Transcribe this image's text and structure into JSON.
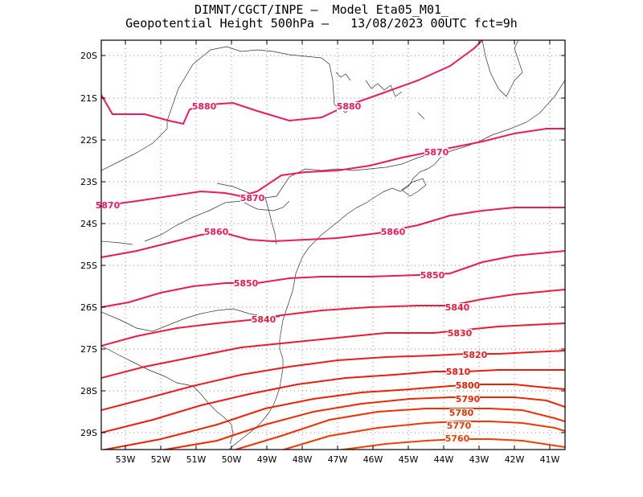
{
  "title": {
    "line1": "DIMNT/CGCT/INPE –  Model Eta05_M01_",
    "line2": "Geopotential Height 500hPa –   13/08/2023 00UTC fct=9h"
  },
  "map": {
    "lat_labels": [
      "20S",
      "21S",
      "22S",
      "23S",
      "24S",
      "25S",
      "26S",
      "27S",
      "28S",
      "29S"
    ],
    "lon_labels": [
      "53W",
      "52W",
      "51W",
      "50W",
      "49W",
      "48W",
      "47W",
      "46W",
      "45W",
      "44W",
      "43W",
      "42W",
      "41W"
    ]
  },
  "contours": [
    {
      "value": "5880",
      "color": "#ee1a5a",
      "label_text": [
        "5880",
        "5880"
      ]
    },
    {
      "value": "5870",
      "color": "#ee1a5a",
      "label_text": [
        "5870",
        "5870",
        "5870"
      ]
    },
    {
      "value": "5860",
      "color": "#ee1a55",
      "label_text": [
        "5860",
        "5860"
      ]
    },
    {
      "value": "5850",
      "color": "#ee1a50",
      "label_text": [
        "5850",
        "5850"
      ]
    },
    {
      "value": "5840",
      "color": "#ee1a40",
      "label_text": [
        "5840",
        "5840"
      ]
    },
    {
      "value": "5830",
      "color": "#ee1a30",
      "label_text": [
        "5830"
      ]
    },
    {
      "value": "5820",
      "color": "#ee1a20",
      "label_text": [
        "5820"
      ]
    },
    {
      "value": "5810",
      "color": "#ee1a10",
      "label_text": [
        "5810"
      ]
    },
    {
      "value": "5800",
      "color": "#ee2000",
      "label_text": [
        "5800"
      ]
    },
    {
      "value": "5790",
      "color": "#ee2800",
      "label_text": [
        "5790"
      ]
    },
    {
      "value": "5780",
      "color": "#ee3000",
      "label_text": [
        "5780"
      ]
    },
    {
      "value": "5770",
      "color": "#ee3800",
      "label_text": [
        "5770"
      ]
    },
    {
      "value": "5760",
      "color": "#ee4000",
      "label_text": [
        "5760"
      ]
    }
  ]
}
